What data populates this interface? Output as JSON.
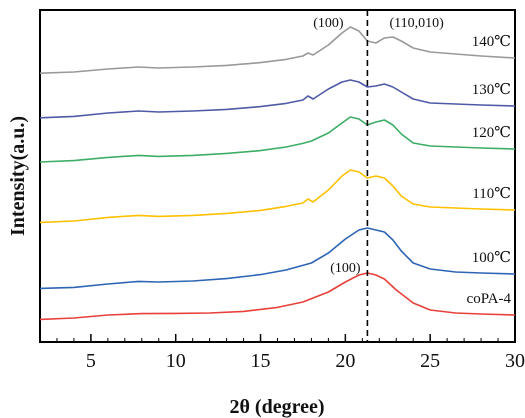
{
  "chart_data": {
    "type": "line",
    "xlabel": "2θ (degree)",
    "ylabel": "Intensity(a.u.)",
    "xlim": [
      2,
      30
    ],
    "x_ticks": [
      5,
      10,
      15,
      20,
      25,
      30
    ],
    "y_ticks_shown": false,
    "grid": false,
    "legend": "none",
    "series": [
      {
        "name": "140℃",
        "color": "#999999",
        "x": [
          2,
          4,
          6,
          7.8,
          9,
          11,
          13,
          15,
          16.5,
          17.5,
          17.8,
          18.1,
          19,
          19.8,
          20.3,
          20.8,
          21.3,
          21.8,
          22.3,
          22.8,
          23.3,
          24,
          25,
          26.5,
          28,
          30
        ],
        "y": [
          0.9,
          1.5,
          3.0,
          4.0,
          3.5,
          4.0,
          4.8,
          6.2,
          7.8,
          9.5,
          11.0,
          10.0,
          15.0,
          21.0,
          24.0,
          22.0,
          17.0,
          16.0,
          18.5,
          19.0,
          17.0,
          13.5,
          11.5,
          10.5,
          9.5,
          8.5
        ]
      },
      {
        "name": "130℃",
        "color": "#4e5aa6",
        "x": [
          2,
          4,
          6,
          7.8,
          9,
          11,
          13,
          15,
          16.5,
          17.5,
          17.8,
          18.1,
          19,
          19.8,
          20.3,
          20.8,
          21.3,
          21.8,
          22.3,
          22.8,
          23.3,
          24,
          25,
          26.5,
          28,
          30
        ],
        "y": [
          0.6,
          1.3,
          3.0,
          4.0,
          3.5,
          4.0,
          4.8,
          6.2,
          7.8,
          9.5,
          11.5,
          10.0,
          15.0,
          18.5,
          19.5,
          18.5,
          16.0,
          16.5,
          17.5,
          16.0,
          13.5,
          10.0,
          8.0,
          7.5,
          7.0,
          6.5
        ]
      },
      {
        "name": "120℃",
        "color": "#3dad66",
        "x": [
          2,
          4,
          6,
          7.8,
          9,
          11,
          13,
          15,
          16.5,
          17.5,
          18,
          19,
          19.8,
          20.3,
          20.8,
          21.3,
          21.8,
          22.3,
          22.8,
          23.3,
          24,
          25,
          26.5,
          28,
          30
        ],
        "y": [
          0.5,
          1.2,
          2.8,
          3.8,
          3.3,
          3.8,
          4.8,
          6.2,
          8.0,
          9.8,
          11.0,
          15.0,
          20.0,
          23.0,
          22.0,
          19.0,
          20.5,
          21.5,
          19.0,
          14.5,
          10.0,
          8.5,
          8.0,
          7.5,
          7.0
        ]
      },
      {
        "name": "110℃",
        "color": "#ffc000",
        "x": [
          2,
          4,
          6,
          7.8,
          9,
          11,
          13,
          15,
          16.5,
          17.5,
          17.8,
          18.1,
          19,
          19.8,
          20.3,
          20.8,
          21.3,
          21.8,
          22.3,
          22.8,
          23.3,
          24,
          25,
          26.5,
          28,
          30
        ],
        "y": [
          0.8,
          1.5,
          3.3,
          4.3,
          3.8,
          4.3,
          5.3,
          6.8,
          8.8,
          10.5,
          12.5,
          11.0,
          17.0,
          24.0,
          27.0,
          26.0,
          23.0,
          24.0,
          23.0,
          19.0,
          14.0,
          10.0,
          8.5,
          8.0,
          7.5,
          7.0
        ]
      },
      {
        "name": "100℃",
        "color": "#2e64b5",
        "x": [
          2,
          4,
          6,
          7.8,
          9,
          11,
          13,
          15,
          16.5,
          18,
          19,
          20,
          20.8,
          21.3,
          21.8,
          22.3,
          22.8,
          23.3,
          24,
          25,
          26.5,
          28,
          30
        ],
        "y": [
          0.3,
          0.8,
          2.5,
          3.8,
          3.5,
          4.0,
          5.2,
          7.2,
          9.5,
          13.0,
          18.0,
          25.0,
          29.5,
          30.5,
          29.5,
          28.5,
          24.5,
          19.0,
          13.0,
          10.0,
          8.5,
          8.0,
          7.5
        ]
      },
      {
        "name": "coPA-4",
        "color": "#e8403a",
        "x": [
          2,
          4,
          6,
          8,
          10,
          12,
          14,
          16,
          17.5,
          19,
          20,
          20.8,
          21.3,
          21.8,
          22.3,
          23,
          24,
          25,
          26.5,
          28,
          30
        ],
        "y": [
          0.3,
          1.0,
          2.5,
          3.2,
          3.3,
          3.5,
          4.3,
          6.3,
          9.0,
          14.0,
          19.0,
          22.5,
          23.5,
          22.5,
          20.5,
          15.0,
          8.5,
          5.0,
          3.5,
          3.0,
          2.5
        ]
      }
    ],
    "annotations": [
      {
        "text": "(100)",
        "x": 19.0,
        "series": 0
      },
      {
        "text": "(110,010)",
        "x": 24.2,
        "series": 0
      },
      {
        "text": "(100)",
        "x": 20.0,
        "series": 5
      }
    ],
    "reference_line": {
      "x": 21.3,
      "style": "dashed"
    }
  }
}
